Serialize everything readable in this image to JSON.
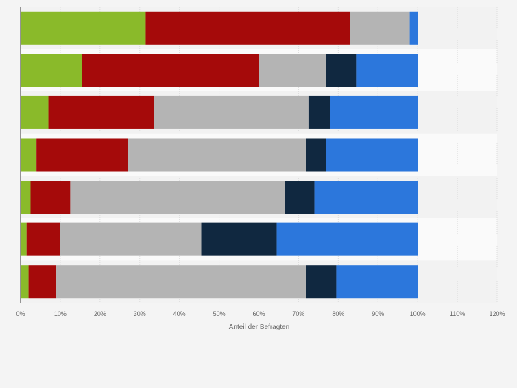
{
  "chart_data": {
    "type": "bar",
    "orientation": "horizontal",
    "stacked": true,
    "title": "",
    "xlabel": "Anteil der Befragten",
    "ylabel": "",
    "xlim": [
      0,
      120
    ],
    "x_ticks": [
      0,
      10,
      20,
      30,
      40,
      50,
      60,
      70,
      80,
      90,
      100,
      110,
      120
    ],
    "x_tick_labels": [
      "0%",
      "10%",
      "20%",
      "30%",
      "40%",
      "50%",
      "60%",
      "70%",
      "80%",
      "90%",
      "100%",
      "110%",
      "120%"
    ],
    "categories": [
      "",
      "",
      "",
      "",
      "",
      "",
      ""
    ],
    "grid": true,
    "legend": "none",
    "series": [
      {
        "color": "#8aba2a",
        "values": [
          31.5,
          15.5,
          7.0,
          4.0,
          2.5,
          1.5,
          2.0
        ]
      },
      {
        "color": "#a50a0a",
        "values": [
          51.5,
          44.5,
          26.5,
          23.0,
          10.0,
          8.5,
          7.0
        ]
      },
      {
        "color": "#b4b4b4",
        "values": [
          15.0,
          17.0,
          39.0,
          45.0,
          54.0,
          35.5,
          63.0
        ]
      },
      {
        "color": "#102840",
        "values": [
          0.0,
          7.5,
          5.5,
          5.0,
          7.5,
          19.0,
          7.5
        ]
      },
      {
        "color": "#2c77dc",
        "values": [
          2.0,
          15.5,
          22.0,
          23.0,
          26.0,
          35.5,
          20.5
        ]
      }
    ]
  }
}
